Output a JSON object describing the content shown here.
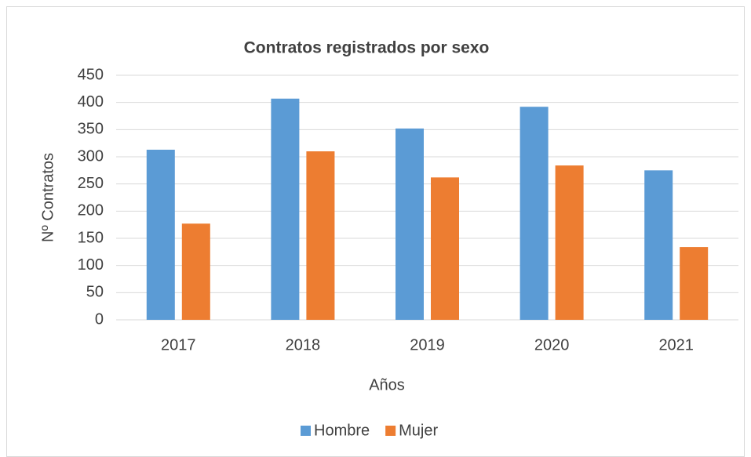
{
  "chart_data": {
    "type": "bar",
    "title": "Contratos registrados por sexo",
    "y_label": "Nº Contratos",
    "x_label": "Años",
    "categories": [
      "2017",
      "2018",
      "2019",
      "2020",
      "2021"
    ],
    "series": [
      {
        "name": "Hombre",
        "color": "#5b9bd5",
        "values": [
          313,
          407,
          352,
          392,
          275
        ]
      },
      {
        "name": "Mujer",
        "color": "#ed7d31",
        "values": [
          177,
          310,
          262,
          284,
          134
        ]
      }
    ],
    "ylim": [
      0,
      450
    ],
    "yticks": [
      0,
      50,
      100,
      150,
      200,
      250,
      300,
      350,
      400,
      450
    ],
    "grid": true,
    "legend": "bottom"
  }
}
